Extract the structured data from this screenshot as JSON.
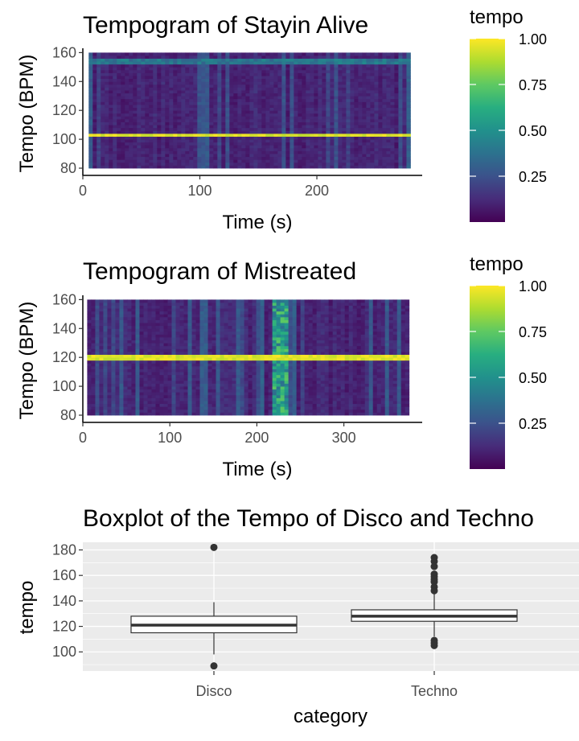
{
  "chart_data": [
    {
      "type": "heatmap",
      "title": "Tempogram of Stayin Alive",
      "xlabel": "Time (s)",
      "ylabel": "Tempo (BPM)",
      "xlim": [
        0,
        290
      ],
      "ylim": [
        75,
        163
      ],
      "data_extent": {
        "x": [
          5,
          280
        ],
        "y": [
          80,
          160
        ]
      },
      "x_ticks": [
        0,
        100,
        200
      ],
      "x_tick_labels": [
        "0",
        "100",
        "200"
      ],
      "y_ticks": [
        80,
        100,
        120,
        140,
        160
      ],
      "y_tick_labels": [
        "80",
        "100",
        "120",
        "140",
        "160"
      ],
      "dominant_tempo": 103,
      "secondary_tempo": 154,
      "grid": false,
      "legend": {
        "title": "tempo",
        "position": "right",
        "ticks": [
          0.25,
          0.5,
          0.75,
          1.0
        ],
        "tick_labels": [
          "0.25",
          "0.50",
          "0.75",
          "1.00"
        ],
        "range": [
          0,
          1
        ]
      }
    },
    {
      "type": "heatmap",
      "title": "Tempogram of Mistreated",
      "xlabel": "Time (s)",
      "ylabel": "Tempo (BPM)",
      "xlim": [
        0,
        390
      ],
      "ylim": [
        75,
        163
      ],
      "data_extent": {
        "x": [
          5,
          375
        ],
        "y": [
          80,
          160
        ]
      },
      "x_ticks": [
        0,
        100,
        200,
        300
      ],
      "x_tick_labels": [
        "0",
        "100",
        "200",
        "300"
      ],
      "y_ticks": [
        80,
        100,
        120,
        140,
        160
      ],
      "y_tick_labels": [
        "80",
        "100",
        "120",
        "140",
        "160"
      ],
      "dominant_tempo": 120,
      "bright_time_band": [
        220,
        235
      ],
      "grid": false,
      "legend": {
        "title": "tempo",
        "position": "right",
        "ticks": [
          0.25,
          0.5,
          0.75,
          1.0
        ],
        "tick_labels": [
          "0.25",
          "0.50",
          "0.75",
          "1.00"
        ],
        "range": [
          0,
          1
        ]
      }
    },
    {
      "type": "boxplot",
      "title": "Boxplot of the Tempo of Disco and Techno",
      "xlabel": "category",
      "ylabel": "tempo",
      "categories": [
        "Disco",
        "Techno"
      ],
      "ylim": [
        85,
        186
      ],
      "y_ticks": [
        100,
        120,
        140,
        160,
        180
      ],
      "y_tick_labels": [
        "100",
        "120",
        "140",
        "160",
        "180"
      ],
      "grid": true,
      "boxes": [
        {
          "name": "Disco",
          "q1": 115,
          "median": 121,
          "q3": 128,
          "whisker_low": 98,
          "whisker_high": 139,
          "outliers": [
            182,
            89
          ]
        },
        {
          "name": "Techno",
          "q1": 124,
          "median": 128,
          "q3": 133,
          "whisker_low": 112,
          "whisker_high": 146,
          "outliers": [
            174,
            171,
            167,
            161,
            159,
            157,
            155,
            151,
            148,
            109,
            107,
            105
          ]
        }
      ]
    }
  ]
}
